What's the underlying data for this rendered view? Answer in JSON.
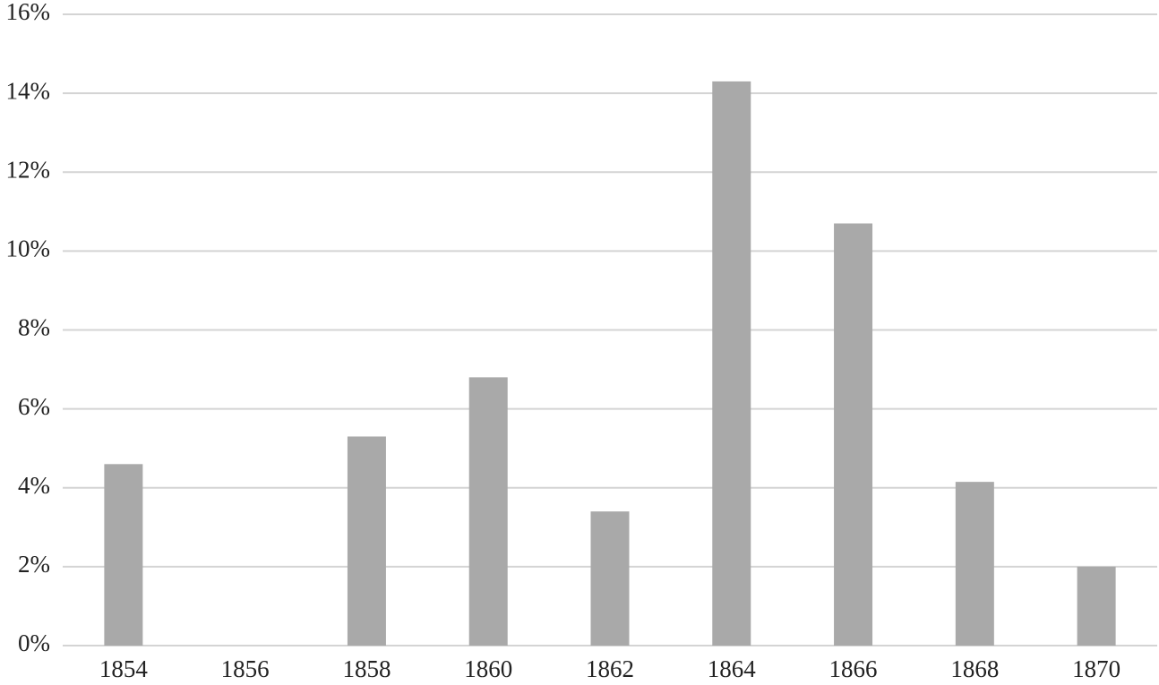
{
  "chart_data": {
    "type": "bar",
    "categories": [
      "1854",
      "1856",
      "1858",
      "1860",
      "1862",
      "1864",
      "1866",
      "1868",
      "1870"
    ],
    "values": [
      4.6,
      0,
      5.3,
      6.8,
      3.4,
      14.3,
      10.7,
      4.15,
      2.0
    ],
    "color": "#a9a9a9",
    "ylim": [
      0,
      16
    ],
    "yticks": [
      {
        "value": 0,
        "label": "0%"
      },
      {
        "value": 2,
        "label": "2%"
      },
      {
        "value": 4,
        "label": "4%"
      },
      {
        "value": 6,
        "label": "6%"
      },
      {
        "value": 8,
        "label": "8%"
      },
      {
        "value": 10,
        "label": "10%"
      },
      {
        "value": 12,
        "label": "12%"
      },
      {
        "value": 14,
        "label": "14%"
      },
      {
        "value": 16,
        "label": "16%"
      }
    ],
    "grid": true
  }
}
